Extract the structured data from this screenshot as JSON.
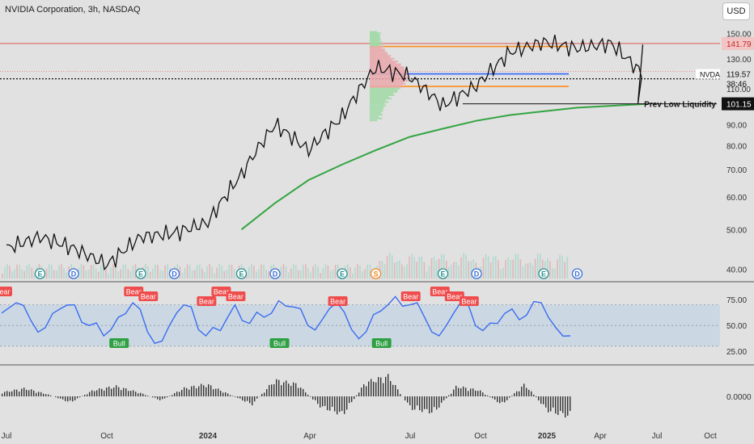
{
  "header": {
    "title": "NVIDIA Corporation, 3h, NASDAQ",
    "currency": "USD"
  },
  "colors": {
    "candle": "#111111",
    "ma": "#33a442",
    "red_line": "#e05a5a",
    "orange": "#ff8c1a",
    "blue": "#3366ff",
    "rsi": "#3b6cf0",
    "rsi_band": "#c5d6e4",
    "bear": "#ef4d4d",
    "bull": "#2ea043",
    "earnings": "#2a8f8f",
    "dividend": "#3a6fd8",
    "split": "#f08a24"
  },
  "chart_data": [
    {
      "type": "line",
      "name": "price",
      "y_ticks": [
        150,
        130,
        110,
        90,
        80,
        70,
        60,
        50,
        40
      ],
      "y_tick_labels": [
        "150.00",
        "130.00",
        "110.00",
        "90.00",
        "80.00",
        "70.00",
        "60.00",
        "50.00",
        "40.00"
      ],
      "y_scale": "log",
      "x_tick_labels": [
        "Jul",
        "Oct",
        "2024",
        "Apr",
        "Jul",
        "Oct",
        "2025",
        "Apr",
        "Jul",
        "Oct"
      ],
      "x": [
        "2023-07",
        "2023-08",
        "2023-09",
        "2023-10",
        "2023-11",
        "2023-12",
        "2024-01",
        "2024-02",
        "2024-03",
        "2024-04",
        "2024-05",
        "2024-06",
        "2024-07",
        "2024-08",
        "2024-09",
        "2024-10",
        "2024-11",
        "2024-12",
        "2025-01",
        "2025-02"
      ],
      "close": [
        45,
        48,
        45,
        41,
        48,
        49,
        52,
        68,
        90,
        78,
        94,
        124,
        118,
        100,
        112,
        135,
        143,
        138,
        142,
        118
      ],
      "ma200": [
        38,
        39,
        40,
        41,
        43,
        44,
        45,
        50,
        58,
        66,
        72,
        78,
        84,
        88,
        92,
        95,
        97,
        99,
        100,
        101
      ],
      "price_labels": [
        {
          "value": 141.79,
          "text": "141.79",
          "style": "red"
        },
        {
          "value": 119.57,
          "text": "119.57",
          "symbol": "NVDA",
          "countdown": "38:46",
          "style": "last"
        },
        {
          "value": 101.15,
          "text": "101.15",
          "style": "dark"
        }
      ],
      "annotations": [
        {
          "text": "Prev Low Liquidity",
          "value": 101.15
        }
      ],
      "levels": [
        {
          "value": 141.79,
          "color": "red"
        },
        {
          "value": 139.5,
          "color": "orange"
        },
        {
          "value": 119.57,
          "color": "blue"
        },
        {
          "value": 111.5,
          "color": "orange"
        }
      ],
      "events": [
        {
          "date": "2023-08",
          "label": "E",
          "kind": "earnings"
        },
        {
          "date": "2023-09",
          "label": "D",
          "kind": "dividend"
        },
        {
          "date": "2023-11",
          "label": "E",
          "kind": "earnings"
        },
        {
          "date": "2023-12",
          "label": "D",
          "kind": "dividend"
        },
        {
          "date": "2024-02",
          "label": "E",
          "kind": "earnings"
        },
        {
          "date": "2024-03",
          "label": "D",
          "kind": "dividend"
        },
        {
          "date": "2024-05",
          "label": "E",
          "kind": "earnings"
        },
        {
          "date": "2024-06",
          "label": "S",
          "kind": "split"
        },
        {
          "date": "2024-08",
          "label": "E",
          "kind": "earnings"
        },
        {
          "date": "2024-09",
          "label": "D",
          "kind": "dividend"
        },
        {
          "date": "2024-11",
          "label": "E",
          "kind": "earnings"
        },
        {
          "date": "2024-12",
          "label": "D",
          "kind": "dividend"
        }
      ]
    },
    {
      "type": "line",
      "name": "rsi",
      "y_ticks": [
        75,
        50,
        25
      ],
      "y_tick_labels": [
        "75.00",
        "50.00",
        "25.00"
      ],
      "ylim": [
        15,
        90
      ],
      "band": [
        30,
        70
      ],
      "values": [
        62,
        72,
        55,
        48,
        66,
        70,
        50,
        40,
        58,
        72,
        44,
        35,
        62,
        68,
        40,
        45,
        70,
        52,
        58,
        74,
        68,
        50,
        56,
        72,
        46,
        44,
        64,
        78,
        70,
        58,
        40,
        62,
        70,
        45,
        52,
        66,
        60,
        72,
        48,
        40
      ],
      "signals": [
        {
          "label": "Bear",
          "kind": "bear",
          "index": 0
        },
        {
          "label": "Bear",
          "kind": "bear",
          "index": 9
        },
        {
          "label": "Bear",
          "kind": "bear",
          "index": 10
        },
        {
          "label": "Bull",
          "kind": "bull",
          "index": 8
        },
        {
          "label": "Bear",
          "kind": "bear",
          "index": 14
        },
        {
          "label": "Bear",
          "kind": "bear",
          "index": 15
        },
        {
          "label": "Bear",
          "kind": "bear",
          "index": 16
        },
        {
          "label": "Bull",
          "kind": "bull",
          "index": 19
        },
        {
          "label": "Bear",
          "kind": "bear",
          "index": 23
        },
        {
          "label": "Bull",
          "kind": "bull",
          "index": 26
        },
        {
          "label": "Bear",
          "kind": "bear",
          "index": 28
        },
        {
          "label": "Bear",
          "kind": "bear",
          "index": 30
        },
        {
          "label": "Bear",
          "kind": "bear",
          "index": 31
        },
        {
          "label": "Bear",
          "kind": "bear",
          "index": 32
        }
      ]
    },
    {
      "type": "bar",
      "name": "momentum",
      "y_ticks": [
        0
      ],
      "y_tick_labels": [
        "0.0000"
      ],
      "values": [
        0.2,
        0.4,
        0.1,
        -0.3,
        0.3,
        0.5,
        0.2,
        -0.2,
        0.4,
        0.6,
        0.1,
        -0.4,
        0.8,
        0.6,
        -0.5,
        -0.9,
        0.7,
        1.0,
        -0.6,
        -0.8,
        0.5,
        0.3,
        -0.4,
        0.6,
        -0.7,
        -1.0
      ]
    }
  ]
}
